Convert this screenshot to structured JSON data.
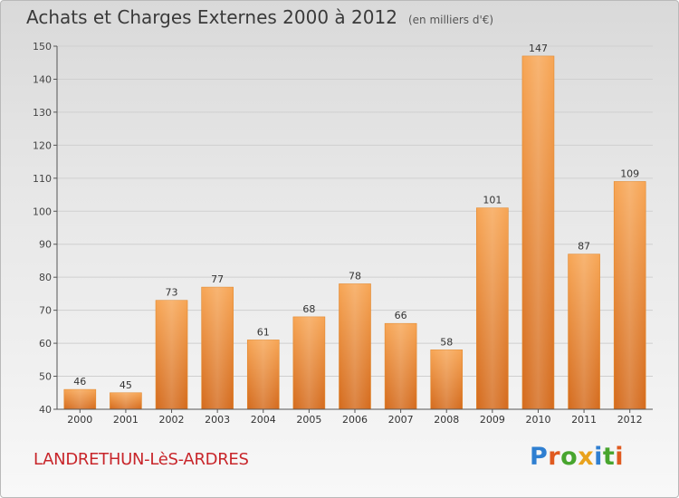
{
  "title": "Achats et Charges Externes 2000 à 2012",
  "unit_label": "(en milliers d'€)",
  "place_name": "LANDRETHUN-LèS-ARDRES",
  "brand": {
    "letters": [
      "P",
      "r",
      "o",
      "x",
      "i",
      "t",
      "i"
    ],
    "colors": [
      "#2f7fd1",
      "#e05a1f",
      "#48a52e",
      "#e9a21c",
      "#2f7fd1",
      "#48a52e",
      "#e05a1f"
    ]
  },
  "colors": {
    "bar_top": "#f7a554",
    "bar_bottom": "#d46a1c",
    "grid": "#cfcfcf",
    "axis": "#555555"
  },
  "chart_data": {
    "type": "bar",
    "title": "Achats et Charges Externes 2000 à 2012",
    "subtitle": "(en milliers d'€)",
    "categories": [
      "2000",
      "2001",
      "2002",
      "2003",
      "2004",
      "2005",
      "2006",
      "2007",
      "2008",
      "2009",
      "2010",
      "2011",
      "2012"
    ],
    "values": [
      46,
      45,
      73,
      77,
      61,
      68,
      78,
      66,
      58,
      101,
      147,
      87,
      109
    ],
    "ylim": [
      40,
      150
    ],
    "yticks": [
      40,
      50,
      60,
      70,
      80,
      90,
      100,
      110,
      120,
      130,
      140,
      150
    ],
    "grid": true,
    "data_labels": true
  }
}
